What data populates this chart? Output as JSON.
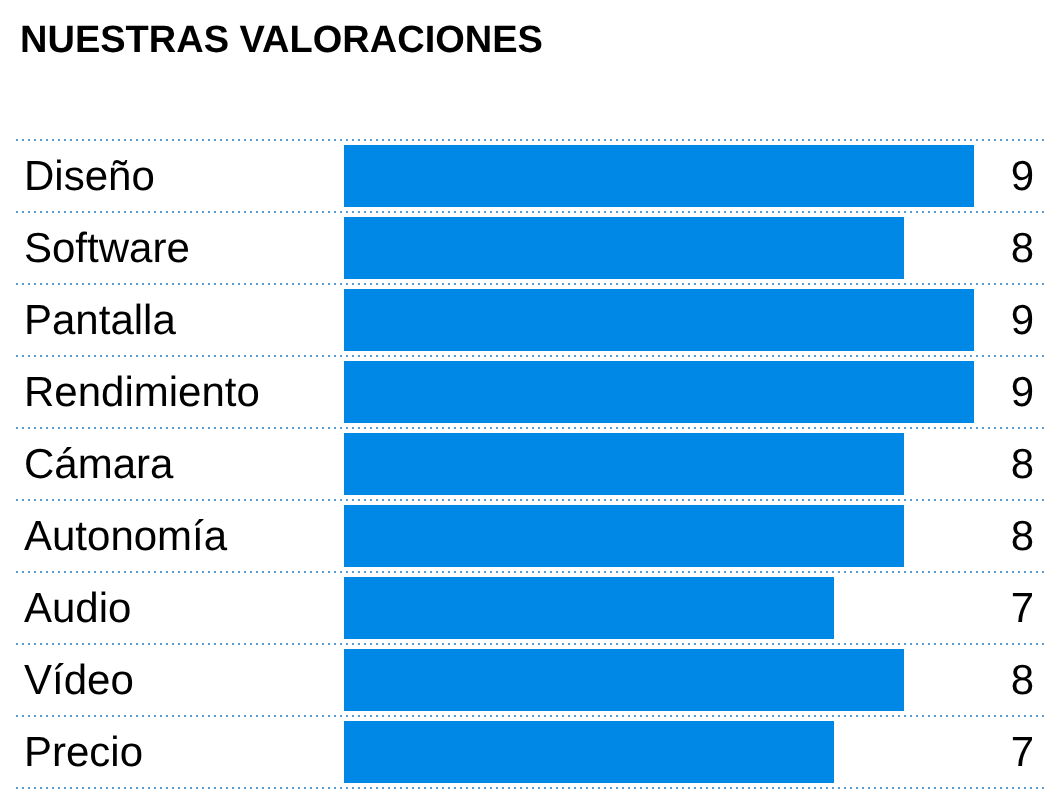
{
  "chart_data": {
    "type": "bar",
    "orientation": "horizontal",
    "title": "NUESTRAS VALORACIONES",
    "categories": [
      "Diseño",
      "Software",
      "Pantalla",
      "Rendimiento",
      "Cámara",
      "Autonomía",
      "Audio",
      "Vídeo",
      "Precio"
    ],
    "values": [
      9,
      8,
      9,
      9,
      8,
      8,
      7,
      8,
      7
    ],
    "color": "#0088e6",
    "data_labels": true
  }
}
